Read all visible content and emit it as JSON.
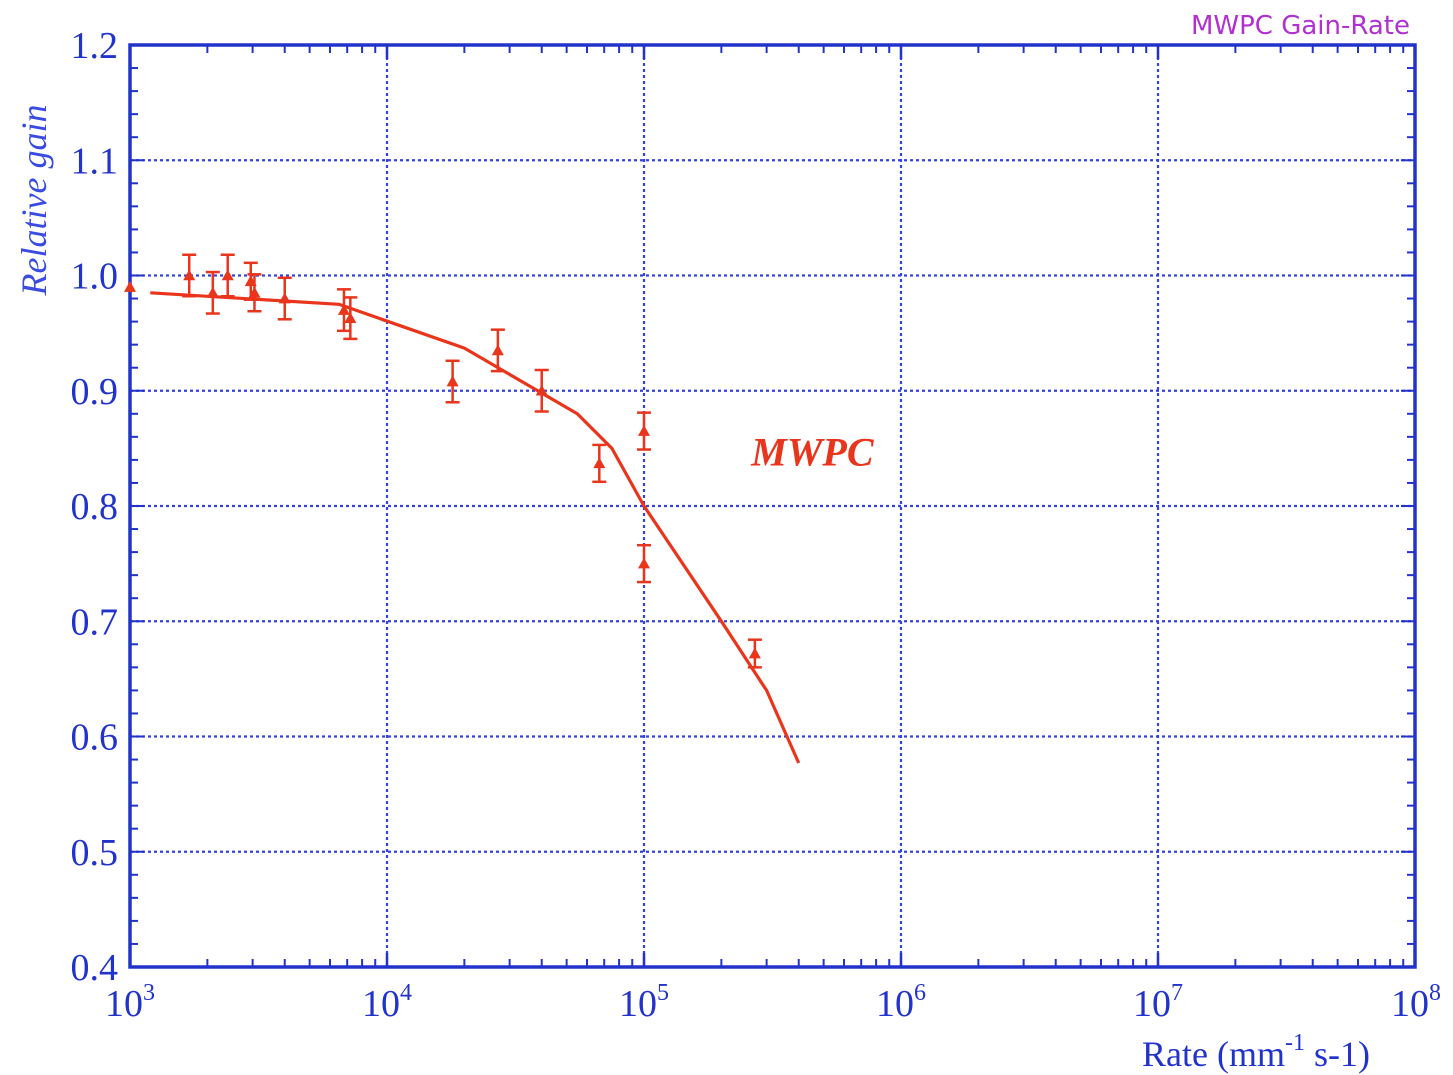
{
  "chart_data": {
    "type": "scatter",
    "title": "MWPC Gain-Rate",
    "xlabel": "Rate (mm",
    "xlabel_sup": "-1",
    "xlabel_tail": " s-1)",
    "ylabel": "Relative gain",
    "x_scale": "log",
    "xlim": [
      1000,
      100000000
    ],
    "ylim": [
      0.4,
      1.2
    ],
    "grid": true,
    "x_ticks": [
      {
        "base": "10",
        "exp": "3"
      },
      {
        "base": "10",
        "exp": "4"
      },
      {
        "base": "10",
        "exp": "5"
      },
      {
        "base": "10",
        "exp": "6"
      },
      {
        "base": "10",
        "exp": "7"
      },
      {
        "base": "10",
        "exp": "8"
      }
    ],
    "y_ticks": [
      "0.4",
      "0.5",
      "0.6",
      "0.7",
      "0.8",
      "0.9",
      "1.0",
      "1.1",
      "1.2"
    ],
    "annotations": [
      {
        "text": "MWPC",
        "x": 250000,
        "y": 0.835
      }
    ],
    "colors": {
      "axes": "#2233cc",
      "grid": "#3344dd",
      "series": "#e8351c",
      "title": "#b030d0"
    },
    "series": [
      {
        "name": "MWPC",
        "points": [
          {
            "x": 1000,
            "y": 0.99,
            "err": 0
          },
          {
            "x": 1700,
            "y": 1.0,
            "err": 0.018
          },
          {
            "x": 2100,
            "y": 0.985,
            "err": 0.018
          },
          {
            "x": 2400,
            "y": 1.0,
            "err": 0.018
          },
          {
            "x": 2950,
            "y": 0.995,
            "err": 0.016
          },
          {
            "x": 3050,
            "y": 0.985,
            "err": 0.016
          },
          {
            "x": 4000,
            "y": 0.98,
            "err": 0.018
          },
          {
            "x": 6800,
            "y": 0.97,
            "err": 0.018
          },
          {
            "x": 7200,
            "y": 0.963,
            "err": 0.018
          },
          {
            "x": 18000,
            "y": 0.908,
            "err": 0.018
          },
          {
            "x": 27000,
            "y": 0.935,
            "err": 0.018
          },
          {
            "x": 40000,
            "y": 0.9,
            "err": 0.018
          },
          {
            "x": 67000,
            "y": 0.837,
            "err": 0.016
          },
          {
            "x": 100000,
            "y": 0.865,
            "err": 0.016
          },
          {
            "x": 100000,
            "y": 0.75,
            "err": 0.016
          },
          {
            "x": 270000,
            "y": 0.672,
            "err": 0.012
          }
        ]
      }
    ],
    "fit_line": [
      {
        "x": 1200,
        "y": 0.985
      },
      {
        "x": 6500,
        "y": 0.975
      },
      {
        "x": 20000,
        "y": 0.937
      },
      {
        "x": 55000,
        "y": 0.88
      },
      {
        "x": 75000,
        "y": 0.85
      },
      {
        "x": 100000,
        "y": 0.8
      },
      {
        "x": 200000,
        "y": 0.7
      },
      {
        "x": 300000,
        "y": 0.64
      },
      {
        "x": 400000,
        "y": 0.577
      }
    ]
  }
}
